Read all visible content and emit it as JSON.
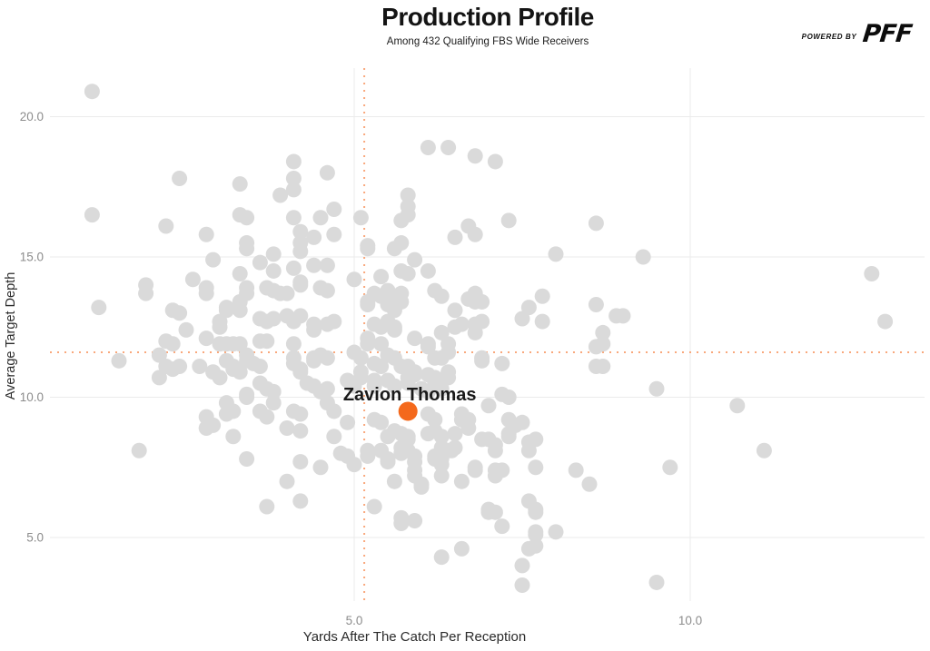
{
  "header": {
    "title": "Production Profile",
    "subtitle": "Among 432 Qualifying FBS Wide Receivers"
  },
  "branding": {
    "powered_by": "POWERED BY",
    "logo_text": "PFF"
  },
  "colors": {
    "point": "#DADADA",
    "highlight": "#F4691C",
    "grid": "#EBEBEB",
    "mean_line": "#F9A87C",
    "tick_label": "#8C8C8C",
    "axis_title": "#2B2B2B",
    "annotation": "#1A1A1A"
  },
  "chart_data": {
    "type": "scatter",
    "title": "Production Profile",
    "subtitle": "Among 432 Qualifying FBS Wide Receivers",
    "xlabel": "Yards After The Catch Per Reception",
    "ylabel": "Average Target Depth",
    "xlim": [
      0.5,
      13.5
    ],
    "ylim": [
      2.7,
      21.7
    ],
    "x_ticks": [
      5.0,
      10.0
    ],
    "x_tick_labels": [
      "5.0",
      "10.0"
    ],
    "y_ticks": [
      5.0,
      10.0,
      15.0,
      20.0
    ],
    "y_tick_labels": [
      "5.0",
      "10.0",
      "15.0",
      "20.0"
    ],
    "grid": true,
    "legend": "none",
    "mean_lines": {
      "x": 5.15,
      "y": 11.6
    },
    "highlight": {
      "name": "Zavion Thomas",
      "x": 5.8,
      "y": 9.5
    },
    "points": [
      [
        1.1,
        20.9
      ],
      [
        1.1,
        16.5
      ],
      [
        2.4,
        17.8
      ],
      [
        3.3,
        17.6
      ],
      [
        2.2,
        16.1
      ],
      [
        2.8,
        15.8
      ],
      [
        3.3,
        16.5
      ],
      [
        3.4,
        16.4
      ],
      [
        3.9,
        17.2
      ],
      [
        4.1,
        18.4
      ],
      [
        4.1,
        17.8
      ],
      [
        4.1,
        17.4
      ],
      [
        4.6,
        18.0
      ],
      [
        4.1,
        16.4
      ],
      [
        4.5,
        16.4
      ],
      [
        4.7,
        16.7
      ],
      [
        4.2,
        15.9
      ],
      [
        4.4,
        15.7
      ],
      [
        4.7,
        15.8
      ],
      [
        3.4,
        15.5
      ],
      [
        4.2,
        15.5
      ],
      [
        6.1,
        18.9
      ],
      [
        6.4,
        18.9
      ],
      [
        6.8,
        18.6
      ],
      [
        7.1,
        18.4
      ],
      [
        5.8,
        17.2
      ],
      [
        5.8,
        16.8
      ],
      [
        5.8,
        16.5
      ],
      [
        5.7,
        16.3
      ],
      [
        5.1,
        16.4
      ],
      [
        7.3,
        16.3
      ],
      [
        8.6,
        16.2
      ],
      [
        6.7,
        16.1
      ],
      [
        6.8,
        15.8
      ],
      [
        6.5,
        15.7
      ],
      [
        5.7,
        15.5
      ],
      [
        5.2,
        15.4
      ],
      [
        9.3,
        15.0
      ],
      [
        12.7,
        14.4
      ],
      [
        12.9,
        12.7
      ],
      [
        9.5,
        10.3
      ],
      [
        10.7,
        9.7
      ],
      [
        2.9,
        14.9
      ],
      [
        3.4,
        15.3
      ],
      [
        3.6,
        14.8
      ],
      [
        3.8,
        15.1
      ],
      [
        3.3,
        14.4
      ],
      [
        3.8,
        14.5
      ],
      [
        4.1,
        14.6
      ],
      [
        4.2,
        15.2
      ],
      [
        4.4,
        14.7
      ],
      [
        4.6,
        14.7
      ],
      [
        1.9,
        14.0
      ],
      [
        1.9,
        13.7
      ],
      [
        2.6,
        14.2
      ],
      [
        2.8,
        13.9
      ],
      [
        2.8,
        13.7
      ],
      [
        3.4,
        13.9
      ],
      [
        3.4,
        13.7
      ],
      [
        3.7,
        13.9
      ],
      [
        3.8,
        13.8
      ],
      [
        3.9,
        13.7
      ],
      [
        4.0,
        13.7
      ],
      [
        4.2,
        14.1
      ],
      [
        4.2,
        14.0
      ],
      [
        4.5,
        13.9
      ],
      [
        4.6,
        13.8
      ],
      [
        1.2,
        13.2
      ],
      [
        2.3,
        13.1
      ],
      [
        2.4,
        13.0
      ],
      [
        3.1,
        13.2
      ],
      [
        3.1,
        13.1
      ],
      [
        3.3,
        13.4
      ],
      [
        3.3,
        13.1
      ],
      [
        3.6,
        12.8
      ],
      [
        3.7,
        12.7
      ],
      [
        3.8,
        12.8
      ],
      [
        4.0,
        12.9
      ],
      [
        4.1,
        12.7
      ],
      [
        4.2,
        12.9
      ],
      [
        4.4,
        12.4
      ],
      [
        4.4,
        12.6
      ],
      [
        4.6,
        12.6
      ],
      [
        4.7,
        12.7
      ],
      [
        2.5,
        12.4
      ],
      [
        3.0,
        12.7
      ],
      [
        3.0,
        12.5
      ],
      [
        2.8,
        12.1
      ],
      [
        3.0,
        11.9
      ],
      [
        3.1,
        11.9
      ],
      [
        3.2,
        11.9
      ],
      [
        3.3,
        11.9
      ],
      [
        3.6,
        12.0
      ],
      [
        3.7,
        12.0
      ],
      [
        4.1,
        11.9
      ],
      [
        2.2,
        12.0
      ],
      [
        2.3,
        11.9
      ],
      [
        2.1,
        11.5
      ],
      [
        1.5,
        11.3
      ],
      [
        2.2,
        11.1
      ],
      [
        2.3,
        11.0
      ],
      [
        2.4,
        11.1
      ],
      [
        2.7,
        11.1
      ],
      [
        2.9,
        10.9
      ],
      [
        3.0,
        10.7
      ],
      [
        3.1,
        11.3
      ],
      [
        3.2,
        11.1
      ],
      [
        3.2,
        11.0
      ],
      [
        3.3,
        10.9
      ],
      [
        3.4,
        11.5
      ],
      [
        3.4,
        11.3
      ],
      [
        3.5,
        11.2
      ],
      [
        3.6,
        11.1
      ],
      [
        3.6,
        10.5
      ],
      [
        3.7,
        10.3
      ],
      [
        3.8,
        10.2
      ],
      [
        4.1,
        11.4
      ],
      [
        4.1,
        11.2
      ],
      [
        4.2,
        11.0
      ],
      [
        4.2,
        10.9
      ],
      [
        4.4,
        11.4
      ],
      [
        4.4,
        11.3
      ],
      [
        4.5,
        11.5
      ],
      [
        4.6,
        11.4
      ],
      [
        4.3,
        10.5
      ],
      [
        4.4,
        10.4
      ],
      [
        4.5,
        10.2
      ],
      [
        4.6,
        10.3
      ],
      [
        2.1,
        10.7
      ],
      [
        3.4,
        10.1
      ],
      [
        3.4,
        10.0
      ],
      [
        3.1,
        9.8
      ],
      [
        3.2,
        9.5
      ],
      [
        3.1,
        9.4
      ],
      [
        3.8,
        9.8
      ],
      [
        4.1,
        9.5
      ],
      [
        4.2,
        9.4
      ],
      [
        3.6,
        9.5
      ],
      [
        3.7,
        9.3
      ],
      [
        2.8,
        9.3
      ],
      [
        2.9,
        9.0
      ],
      [
        4.6,
        9.8
      ],
      [
        4.7,
        9.5
      ],
      [
        5.2,
        15.3
      ],
      [
        5.6,
        15.3
      ],
      [
        5.9,
        14.9
      ],
      [
        8.0,
        15.1
      ],
      [
        5.7,
        14.5
      ],
      [
        5.8,
        14.4
      ],
      [
        6.1,
        14.5
      ],
      [
        5.4,
        14.3
      ],
      [
        5.0,
        14.2
      ],
      [
        5.3,
        13.7
      ],
      [
        5.4,
        13.6
      ],
      [
        5.2,
        13.3
      ],
      [
        5.5,
        13.8
      ],
      [
        5.5,
        13.5
      ],
      [
        5.7,
        13.7
      ],
      [
        5.7,
        13.4
      ],
      [
        6.2,
        13.8
      ],
      [
        6.3,
        13.6
      ],
      [
        6.8,
        13.7
      ],
      [
        6.8,
        13.4
      ],
      [
        6.7,
        13.5
      ],
      [
        6.9,
        13.4
      ],
      [
        7.8,
        13.6
      ],
      [
        7.6,
        13.2
      ],
      [
        7.5,
        12.8
      ],
      [
        7.8,
        12.7
      ],
      [
        8.6,
        13.3
      ],
      [
        8.9,
        12.9
      ],
      [
        6.5,
        13.1
      ],
      [
        5.6,
        13.2
      ],
      [
        5.6,
        13.1
      ],
      [
        5.5,
        13.3
      ],
      [
        5.2,
        13.4
      ],
      [
        5.3,
        12.6
      ],
      [
        5.4,
        12.5
      ],
      [
        5.5,
        12.7
      ],
      [
        5.6,
        12.5
      ],
      [
        5.6,
        12.4
      ],
      [
        5.9,
        12.1
      ],
      [
        6.1,
        11.9
      ],
      [
        6.1,
        11.8
      ],
      [
        6.3,
        12.3
      ],
      [
        6.2,
        11.4
      ],
      [
        6.3,
        11.4
      ],
      [
        6.4,
        11.9
      ],
      [
        6.4,
        11.6
      ],
      [
        6.5,
        12.5
      ],
      [
        6.6,
        12.6
      ],
      [
        6.8,
        12.6
      ],
      [
        6.9,
        12.7
      ],
      [
        6.8,
        12.3
      ],
      [
        8.7,
        12.3
      ],
      [
        8.7,
        11.9
      ],
      [
        8.6,
        11.8
      ],
      [
        9.0,
        12.9
      ],
      [
        6.9,
        11.4
      ],
      [
        6.9,
        11.3
      ],
      [
        7.2,
        11.2
      ],
      [
        8.6,
        11.1
      ],
      [
        8.7,
        11.1
      ],
      [
        5.2,
        12.1
      ],
      [
        5.2,
        11.9
      ],
      [
        5.0,
        11.6
      ],
      [
        5.1,
        11.4
      ],
      [
        5.4,
        11.9
      ],
      [
        5.3,
        11.2
      ],
      [
        5.4,
        11.1
      ],
      [
        5.5,
        11.5
      ],
      [
        5.6,
        11.4
      ],
      [
        5.7,
        11.1
      ],
      [
        5.8,
        11.1
      ],
      [
        5.9,
        10.9
      ],
      [
        5.9,
        10.8
      ],
      [
        6.1,
        10.8
      ],
      [
        6.2,
        10.7
      ],
      [
        6.4,
        10.9
      ],
      [
        6.4,
        10.7
      ],
      [
        5.1,
        10.9
      ],
      [
        5.1,
        10.7
      ],
      [
        4.9,
        10.6
      ],
      [
        5.0,
        10.4
      ],
      [
        5.3,
        10.6
      ],
      [
        5.3,
        10.4
      ],
      [
        5.5,
        10.6
      ],
      [
        5.6,
        10.4
      ],
      [
        5.8,
        10.7
      ],
      [
        5.8,
        10.5
      ],
      [
        6.0,
        10.3
      ],
      [
        6.1,
        10.2
      ],
      [
        6.2,
        10.5
      ],
      [
        6.3,
        10.3
      ],
      [
        7.2,
        10.1
      ],
      [
        7.3,
        10.0
      ],
      [
        7.0,
        9.7
      ],
      [
        6.1,
        9.4
      ],
      [
        6.2,
        9.2
      ],
      [
        6.6,
        9.4
      ],
      [
        6.6,
        9.2
      ],
      [
        6.7,
        9.2
      ],
      [
        7.3,
        9.2
      ],
      [
        7.4,
        9.0
      ],
      [
        7.5,
        9.1
      ],
      [
        5.3,
        9.2
      ],
      [
        5.4,
        9.1
      ],
      [
        4.9,
        9.1
      ],
      [
        1.8,
        8.1
      ],
      [
        2.8,
        8.9
      ],
      [
        3.2,
        8.6
      ],
      [
        3.4,
        7.8
      ],
      [
        4.0,
        8.9
      ],
      [
        4.2,
        8.8
      ],
      [
        4.7,
        8.6
      ],
      [
        4.8,
        8.0
      ],
      [
        4.2,
        7.7
      ],
      [
        4.5,
        7.5
      ],
      [
        4.0,
        7.0
      ],
      [
        4.2,
        6.3
      ],
      [
        3.7,
        6.1
      ],
      [
        4.9,
        7.9
      ],
      [
        5.0,
        7.6
      ],
      [
        5.2,
        7.9
      ],
      [
        5.2,
        8.1
      ],
      [
        5.4,
        8.1
      ],
      [
        5.5,
        7.8
      ],
      [
        5.5,
        7.7
      ],
      [
        5.5,
        8.6
      ],
      [
        5.6,
        8.8
      ],
      [
        5.7,
        8.7
      ],
      [
        5.8,
        8.5
      ],
      [
        5.8,
        8.6
      ],
      [
        5.7,
        8.2
      ],
      [
        5.7,
        8.0
      ],
      [
        5.8,
        8.1
      ],
      [
        5.9,
        7.9
      ],
      [
        5.9,
        7.7
      ],
      [
        5.9,
        7.4
      ],
      [
        5.9,
        7.2
      ],
      [
        6.0,
        6.9
      ],
      [
        6.0,
        6.8
      ],
      [
        5.6,
        7.0
      ],
      [
        6.1,
        8.7
      ],
      [
        6.2,
        8.8
      ],
      [
        6.3,
        8.6
      ],
      [
        6.2,
        7.9
      ],
      [
        6.2,
        7.8
      ],
      [
        6.3,
        7.8
      ],
      [
        6.3,
        8.2
      ],
      [
        6.4,
        8.1
      ],
      [
        6.45,
        8.1
      ],
      [
        6.5,
        8.2
      ],
      [
        6.3,
        7.6
      ],
      [
        6.3,
        7.2
      ],
      [
        6.5,
        8.7
      ],
      [
        6.7,
        8.9
      ],
      [
        6.6,
        7.0
      ],
      [
        6.8,
        7.5
      ],
      [
        6.8,
        7.4
      ],
      [
        6.9,
        8.5
      ],
      [
        7.0,
        8.5
      ],
      [
        7.1,
        8.3
      ],
      [
        7.1,
        8.1
      ],
      [
        7.1,
        7.2
      ],
      [
        7.1,
        7.4
      ],
      [
        7.2,
        7.4
      ],
      [
        7.3,
        8.6
      ],
      [
        7.3,
        8.7
      ],
      [
        7.6,
        8.1
      ],
      [
        7.6,
        8.4
      ],
      [
        7.7,
        8.5
      ],
      [
        7.7,
        7.5
      ],
      [
        5.3,
        6.1
      ],
      [
        5.7,
        5.7
      ],
      [
        5.7,
        5.5
      ],
      [
        5.9,
        5.6
      ],
      [
        7.0,
        5.9
      ],
      [
        7.0,
        6.0
      ],
      [
        7.1,
        5.9
      ],
      [
        7.2,
        5.4
      ],
      [
        7.6,
        6.3
      ],
      [
        7.7,
        6.0
      ],
      [
        7.7,
        5.9
      ],
      [
        7.7,
        5.2
      ],
      [
        7.7,
        5.1
      ],
      [
        8.0,
        5.2
      ],
      [
        8.3,
        7.4
      ],
      [
        8.5,
        6.9
      ],
      [
        7.6,
        4.6
      ],
      [
        7.7,
        4.7
      ],
      [
        6.3,
        4.3
      ],
      [
        6.6,
        4.6
      ],
      [
        7.5,
        4.0
      ],
      [
        7.5,
        3.3
      ],
      [
        11.1,
        8.1
      ],
      [
        9.7,
        7.5
      ],
      [
        9.5,
        3.4
      ]
    ]
  }
}
